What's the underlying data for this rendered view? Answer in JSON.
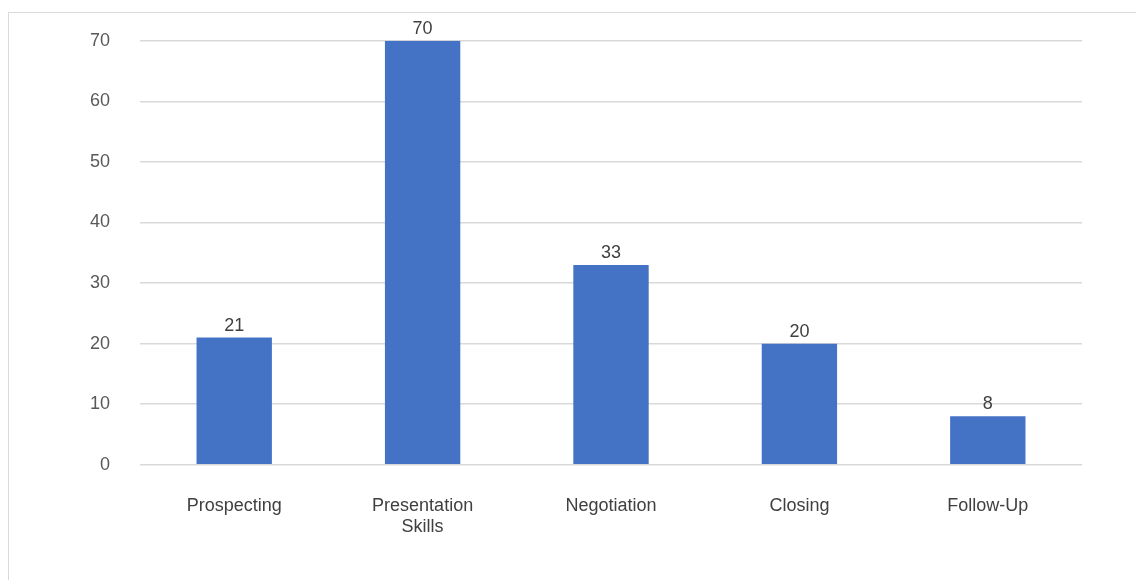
{
  "chart_data": {
    "type": "bar",
    "categories": [
      "Prospecting",
      "Presentation Skills",
      "Negotiation",
      "Closing",
      "Follow-Up"
    ],
    "values": [
      21,
      70,
      33,
      20,
      8
    ],
    "color": "#4472c4",
    "ylim": [
      0,
      70
    ],
    "yticks": [
      0,
      10,
      20,
      30,
      40,
      50,
      60,
      70
    ],
    "grid": "y",
    "data_labels": true
  }
}
